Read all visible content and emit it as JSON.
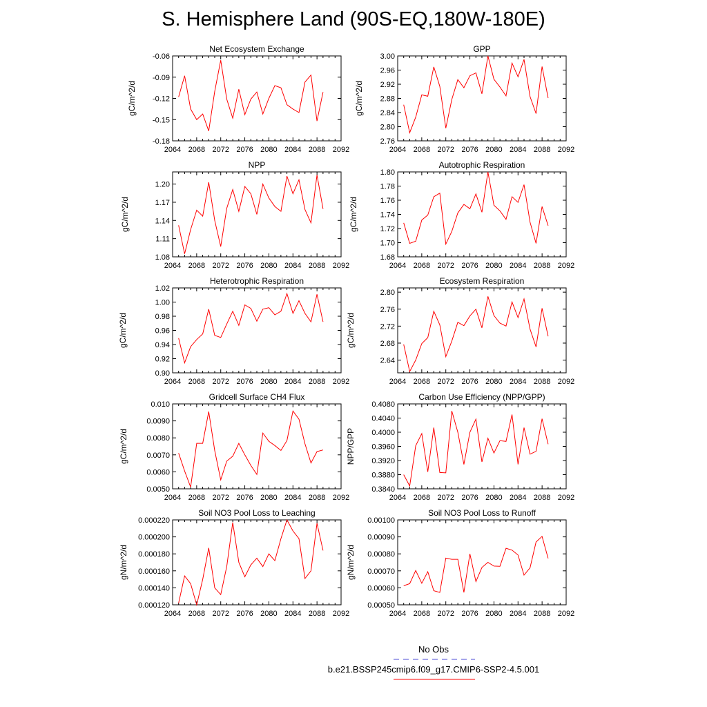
{
  "title": "S. Hemisphere Land (90S-EQ,180W-180E)",
  "colors": {
    "series": "#ff0000",
    "obs": "#4b4bd6"
  },
  "legend": {
    "obs_label": "No Obs",
    "model_label": "b.e21.BSSP245cmip6.f09_g17.CMIP6-SSP2-4.5.001"
  },
  "chart_data": [
    {
      "type": "line",
      "title": "Net Ecosystem Exchange",
      "ylabel": "gC/m^2/d",
      "xlim": [
        2064,
        2092
      ],
      "ylim": [
        -0.18,
        -0.06
      ],
      "xticks": [
        "2064",
        "2068",
        "2072",
        "2076",
        "2080",
        "2084",
        "2088",
        "2092"
      ],
      "yticks": [
        "-0.06",
        "-0.09",
        "-0.12",
        "-0.15",
        "-0.18"
      ],
      "ytick_values": [
        -0.06,
        -0.09,
        -0.12,
        -0.15,
        -0.18
      ],
      "x": [
        2065,
        2066,
        2067,
        2068,
        2069,
        2070,
        2071,
        2072,
        2073,
        2074,
        2075,
        2076,
        2077,
        2078,
        2079,
        2080,
        2081,
        2082,
        2083,
        2084,
        2085,
        2086,
        2087,
        2088,
        2089
      ],
      "values": [
        -0.118,
        -0.088,
        -0.135,
        -0.15,
        -0.142,
        -0.166,
        -0.11,
        -0.066,
        -0.121,
        -0.148,
        -0.107,
        -0.143,
        -0.121,
        -0.111,
        -0.142,
        -0.12,
        -0.102,
        -0.105,
        -0.129,
        -0.135,
        -0.14,
        -0.097,
        -0.087,
        -0.152,
        -0.111
      ]
    },
    {
      "type": "line",
      "title": "GPP",
      "ylabel": "gC/m^2/d",
      "xlim": [
        2064,
        2092
      ],
      "ylim": [
        2.76,
        3.0
      ],
      "xticks": [
        "2064",
        "2068",
        "2072",
        "2076",
        "2080",
        "2084",
        "2088",
        "2092"
      ],
      "yticks": [
        "3.00",
        "2.96",
        "2.92",
        "2.88",
        "2.84",
        "2.80",
        "2.76"
      ],
      "ytick_values": [
        3.0,
        2.96,
        2.92,
        2.88,
        2.84,
        2.8,
        2.76
      ],
      "x": [
        2065,
        2066,
        2067,
        2068,
        2069,
        2070,
        2071,
        2072,
        2073,
        2074,
        2075,
        2076,
        2077,
        2078,
        2079,
        2080,
        2081,
        2082,
        2083,
        2084,
        2085,
        2086,
        2087,
        2088,
        2089
      ],
      "values": [
        2.862,
        2.783,
        2.827,
        2.89,
        2.886,
        2.969,
        2.914,
        2.796,
        2.877,
        2.933,
        2.91,
        2.944,
        2.952,
        2.893,
        3.0,
        2.934,
        2.912,
        2.887,
        2.98,
        2.941,
        2.99,
        2.885,
        2.837,
        2.97,
        2.881
      ]
    },
    {
      "type": "line",
      "title": "NPP",
      "ylabel": "gC/m^2/d",
      "xlim": [
        2064,
        2092
      ],
      "ylim": [
        1.08,
        1.22
      ],
      "xticks": [
        "2064",
        "2068",
        "2072",
        "2076",
        "2080",
        "2084",
        "2088",
        "2092"
      ],
      "yticks": [
        "1.20",
        "1.17",
        "1.14",
        "1.11",
        "1.08"
      ],
      "ytick_values": [
        1.2,
        1.17,
        1.14,
        1.11,
        1.08
      ],
      "x": [
        2065,
        2066,
        2067,
        2068,
        2069,
        2070,
        2071,
        2072,
        2073,
        2074,
        2075,
        2076,
        2077,
        2078,
        2079,
        2080,
        2081,
        2082,
        2083,
        2084,
        2085,
        2086,
        2087,
        2088,
        2089
      ],
      "values": [
        1.132,
        1.085,
        1.125,
        1.157,
        1.147,
        1.203,
        1.14,
        1.097,
        1.16,
        1.191,
        1.155,
        1.196,
        1.184,
        1.15,
        1.2,
        1.177,
        1.163,
        1.155,
        1.213,
        1.184,
        1.207,
        1.158,
        1.136,
        1.215,
        1.159
      ]
    },
    {
      "type": "line",
      "title": "Autotrophic Respiration",
      "ylabel": "gC/m^2/d",
      "xlim": [
        2064,
        2092
      ],
      "ylim": [
        1.68,
        1.8
      ],
      "xticks": [
        "2064",
        "2068",
        "2072",
        "2076",
        "2080",
        "2084",
        "2088",
        "2092"
      ],
      "yticks": [
        "1.80",
        "1.78",
        "1.76",
        "1.74",
        "1.72",
        "1.70",
        "1.68"
      ],
      "ytick_values": [
        1.8,
        1.78,
        1.76,
        1.74,
        1.72,
        1.7,
        1.68
      ],
      "x": [
        2065,
        2066,
        2067,
        2068,
        2069,
        2070,
        2071,
        2072,
        2073,
        2074,
        2075,
        2076,
        2077,
        2078,
        2079,
        2080,
        2081,
        2082,
        2083,
        2084,
        2085,
        2086,
        2087,
        2088,
        2089
      ],
      "values": [
        1.728,
        1.699,
        1.702,
        1.732,
        1.739,
        1.765,
        1.77,
        1.698,
        1.716,
        1.742,
        1.754,
        1.748,
        1.769,
        1.743,
        1.8,
        1.753,
        1.745,
        1.733,
        1.765,
        1.757,
        1.782,
        1.729,
        1.699,
        1.751,
        1.724
      ]
    },
    {
      "type": "line",
      "title": "Heterotrophic Respiration",
      "ylabel": "gC/m^2/d",
      "xlim": [
        2064,
        2092
      ],
      "ylim": [
        0.9,
        1.02
      ],
      "xticks": [
        "2064",
        "2068",
        "2072",
        "2076",
        "2080",
        "2084",
        "2088",
        "2092"
      ],
      "yticks": [
        "1.02",
        "1.00",
        "0.98",
        "0.96",
        "0.94",
        "0.92",
        "0.90"
      ],
      "ytick_values": [
        1.02,
        1.0,
        0.98,
        0.96,
        0.94,
        0.92,
        0.9
      ],
      "x": [
        2065,
        2066,
        2067,
        2068,
        2069,
        2070,
        2071,
        2072,
        2073,
        2074,
        2075,
        2076,
        2077,
        2078,
        2079,
        2080,
        2081,
        2082,
        2083,
        2084,
        2085,
        2086,
        2087,
        2088,
        2089
      ],
      "values": [
        0.949,
        0.914,
        0.937,
        0.947,
        0.955,
        0.99,
        0.953,
        0.95,
        0.969,
        0.987,
        0.967,
        0.996,
        0.991,
        0.973,
        0.99,
        0.992,
        0.982,
        0.987,
        1.012,
        0.984,
        1.002,
        0.984,
        0.972,
        1.011,
        0.972
      ]
    },
    {
      "type": "line",
      "title": "Ecosystem Respiration",
      "ylabel": "gC/m^2/d",
      "xlim": [
        2064,
        2092
      ],
      "ylim": [
        2.61,
        2.81
      ],
      "xticks": [
        "2064",
        "2068",
        "2072",
        "2076",
        "2080",
        "2084",
        "2088",
        "2092"
      ],
      "yticks": [
        "2.80",
        "2.76",
        "2.72",
        "2.68",
        "2.64"
      ],
      "ytick_values": [
        2.8,
        2.76,
        2.72,
        2.68,
        2.64
      ],
      "x": [
        2065,
        2066,
        2067,
        2068,
        2069,
        2070,
        2071,
        2072,
        2073,
        2074,
        2075,
        2076,
        2077,
        2078,
        2079,
        2080,
        2081,
        2082,
        2083,
        2084,
        2085,
        2086,
        2087,
        2088,
        2089
      ],
      "values": [
        2.677,
        2.613,
        2.64,
        2.679,
        2.693,
        2.755,
        2.723,
        2.648,
        2.685,
        2.729,
        2.721,
        2.744,
        2.76,
        2.716,
        2.79,
        2.745,
        2.727,
        2.72,
        2.777,
        2.74,
        2.784,
        2.713,
        2.671,
        2.762,
        2.696
      ]
    },
    {
      "type": "line",
      "title": "Gridcell Surface CH4 Flux",
      "ylabel": "gC/m^2/d",
      "xlim": [
        2064,
        2092
      ],
      "ylim": [
        0.005,
        0.01
      ],
      "xticks": [
        "2064",
        "2068",
        "2072",
        "2076",
        "2080",
        "2084",
        "2088",
        "2092"
      ],
      "yticks": [
        "0.010",
        "0.0090",
        "0.0080",
        "0.0070",
        "0.0060",
        "0.0050"
      ],
      "ytick_values": [
        0.01,
        0.009,
        0.008,
        0.007,
        0.006,
        0.005
      ],
      "x": [
        2065,
        2066,
        2067,
        2068,
        2069,
        2070,
        2071,
        2072,
        2073,
        2074,
        2075,
        2076,
        2077,
        2078,
        2079,
        2080,
        2081,
        2082,
        2083,
        2084,
        2085,
        2086,
        2087,
        2088,
        2089
      ],
      "values": [
        0.0071,
        0.00605,
        0.0051,
        0.00768,
        0.00768,
        0.00955,
        0.00725,
        0.00553,
        0.00663,
        0.00692,
        0.00768,
        0.007,
        0.00638,
        0.00585,
        0.00828,
        0.0078,
        0.00755,
        0.00726,
        0.00784,
        0.00958,
        0.0091,
        0.00765,
        0.00652,
        0.00719,
        0.00729
      ]
    },
    {
      "type": "line",
      "title": "Carbon Use Efficiency (NPP/GPP)",
      "ylabel": "NPP/GPP",
      "xlim": [
        2064,
        2092
      ],
      "ylim": [
        0.384,
        0.408
      ],
      "xticks": [
        "2064",
        "2068",
        "2072",
        "2076",
        "2080",
        "2084",
        "2088",
        "2092"
      ],
      "yticks": [
        "0.4080",
        "0.4040",
        "0.4000",
        "0.3960",
        "0.3920",
        "0.3880",
        "0.3840"
      ],
      "ytick_values": [
        0.408,
        0.404,
        0.4,
        0.396,
        0.392,
        0.388,
        0.384
      ],
      "x": [
        2065,
        2066,
        2067,
        2068,
        2069,
        2070,
        2071,
        2072,
        2073,
        2074,
        2075,
        2076,
        2077,
        2078,
        2079,
        2080,
        2081,
        2082,
        2083,
        2084,
        2085,
        2086,
        2087,
        2088,
        2089
      ],
      "values": [
        0.388,
        0.3848,
        0.3962,
        0.3996,
        0.3888,
        0.4013,
        0.3886,
        0.3885,
        0.406,
        0.4,
        0.3909,
        0.4,
        0.4037,
        0.3916,
        0.3983,
        0.3941,
        0.3976,
        0.3974,
        0.405,
        0.3909,
        0.4013,
        0.3938,
        0.3946,
        0.4038,
        0.3966
      ]
    },
    {
      "type": "line",
      "title": "Soil NO3 Pool Loss to Leaching",
      "ylabel": "gN/m^2/d",
      "xlim": [
        2064,
        2092
      ],
      "ylim": [
        0.00012,
        0.00022
      ],
      "xticks": [
        "2064",
        "2068",
        "2072",
        "2076",
        "2080",
        "2084",
        "2088",
        "2092"
      ],
      "yticks": [
        "0.000220",
        "0.000200",
        "0.000180",
        "0.000160",
        "0.000140",
        "0.000120"
      ],
      "ytick_values": [
        0.00022,
        0.0002,
        0.00018,
        0.00016,
        0.00014,
        0.00012
      ],
      "x": [
        2065,
        2066,
        2067,
        2068,
        2069,
        2070,
        2071,
        2072,
        2073,
        2074,
        2075,
        2076,
        2077,
        2078,
        2079,
        2080,
        2081,
        2082,
        2083,
        2084,
        2085,
        2086,
        2087,
        2088,
        2089
      ],
      "values": [
        0.000122,
        0.000154,
        0.000145,
        0.00012,
        0.00015,
        0.000187,
        0.00014,
        0.000132,
        0.000165,
        0.000217,
        0.00017,
        0.000153,
        0.000167,
        0.000175,
        0.000165,
        0.00018,
        0.000172,
        0.000198,
        0.00022,
        0.000207,
        0.000198,
        0.000151,
        0.00016,
        0.000216,
        0.000184
      ]
    },
    {
      "type": "line",
      "title": "Soil NO3 Pool Loss to Runoff",
      "ylabel": "gN/m^2/d",
      "xlim": [
        2064,
        2092
      ],
      "ylim": [
        0.0005,
        0.001
      ],
      "xticks": [
        "2064",
        "2068",
        "2072",
        "2076",
        "2080",
        "2084",
        "2088",
        "2092"
      ],
      "yticks": [
        "0.00100",
        "0.00090",
        "0.00080",
        "0.00070",
        "0.00060",
        "0.00050"
      ],
      "ytick_values": [
        0.001,
        0.0009,
        0.0008,
        0.0007,
        0.0006,
        0.0005
      ],
      "x": [
        2065,
        2066,
        2067,
        2068,
        2069,
        2070,
        2071,
        2072,
        2073,
        2074,
        2075,
        2076,
        2077,
        2078,
        2079,
        2080,
        2081,
        2082,
        2083,
        2084,
        2085,
        2086,
        2087,
        2088,
        2089
      ],
      "values": [
        0.000612,
        0.000625,
        0.000702,
        0.000627,
        0.000695,
        0.000583,
        0.000573,
        0.000775,
        0.000768,
        0.000768,
        0.000573,
        0.0008,
        0.000637,
        0.00072,
        0.00075,
        0.000728,
        0.000727,
        0.000833,
        0.000822,
        0.000793,
        0.000675,
        0.000718,
        0.00087,
        0.000903,
        0.000773
      ]
    }
  ]
}
